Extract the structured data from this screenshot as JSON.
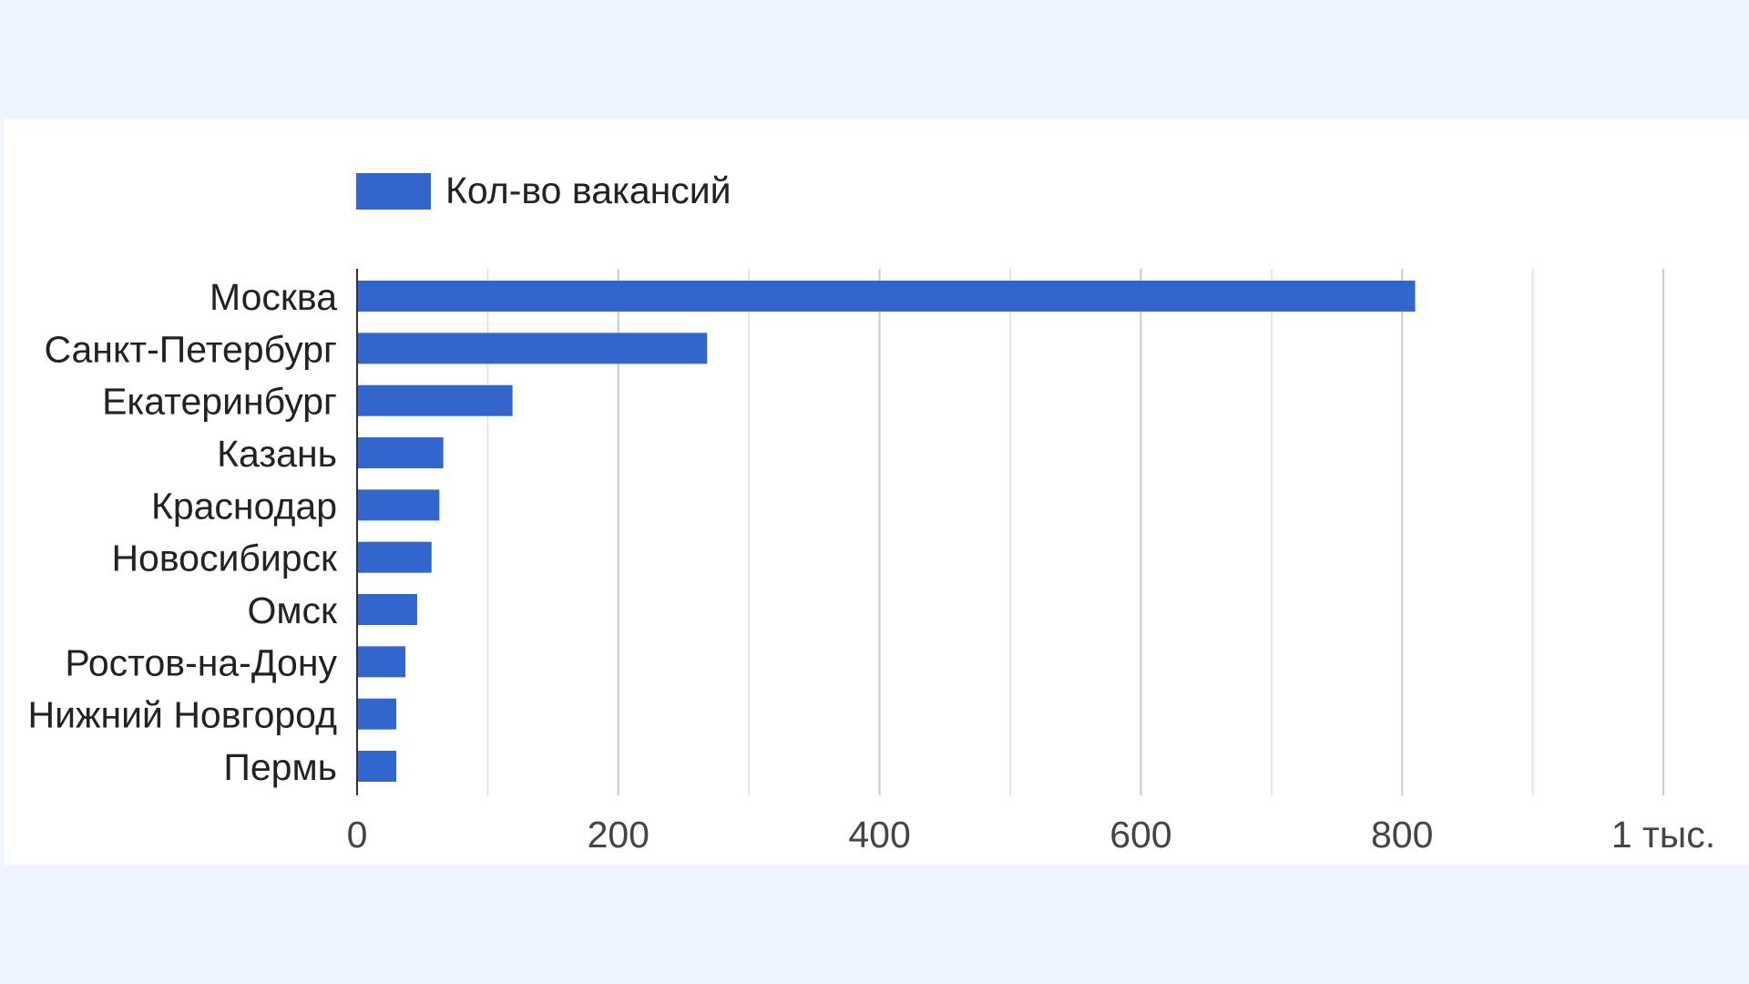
{
  "chart_data": {
    "type": "bar",
    "orientation": "horizontal",
    "categories": [
      "Москва",
      "Санкт-Петербург",
      "Екатеринбург",
      "Казань",
      "Краснодар",
      "Новосибирск",
      "Омск",
      "Ростов-на-Дону",
      "Нижний Новгород",
      "Пермь"
    ],
    "series": [
      {
        "name": "Кол-во вакансий",
        "values": [
          810,
          268,
          119,
          66,
          63,
          57,
          46,
          37,
          30,
          30
        ]
      }
    ],
    "xlim": [
      0,
      1000
    ],
    "x_ticks": [
      0,
      200,
      400,
      600,
      800,
      1000
    ],
    "x_tick_labels": [
      "0",
      "200",
      "400",
      "600",
      "800",
      "1 тыс."
    ],
    "grid": true,
    "minor_grid_step": 100,
    "legend_position": "top-left",
    "colors": {
      "bar": "#3366cc",
      "grid": "#cccccc",
      "minor_grid": "#e6e6e6",
      "axis": "#333333",
      "background": "#ffffff",
      "page": "#eef4fd"
    }
  }
}
